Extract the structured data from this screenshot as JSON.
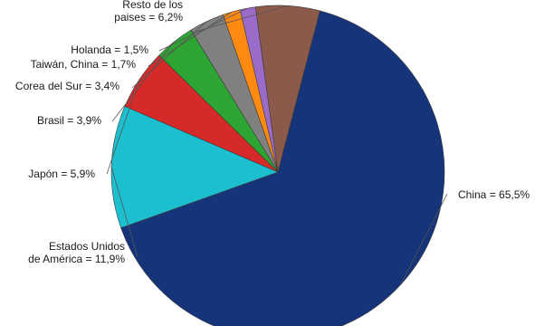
{
  "chart_data": {
    "type": "pie",
    "title": "",
    "slices": [
      {
        "name": "China",
        "value": 65.5,
        "label": [
          "China = 65,5%"
        ],
        "color": "#15347a"
      },
      {
        "name": "Estados Unidos de América",
        "value": 11.9,
        "label": [
          "Estados Unidos",
          "de América = 11,9%"
        ],
        "color": "#1bbfd0"
      },
      {
        "name": "Japón",
        "value": 5.9,
        "label": [
          "Japón = 5,9%"
        ],
        "color": "#d62a2a"
      },
      {
        "name": "Brasil",
        "value": 3.9,
        "label": [
          "Brasil = 3,9%"
        ],
        "color": "#2ea532"
      },
      {
        "name": "Corea del Sur",
        "value": 3.4,
        "label": [
          "Corea del Sur = 3,4%"
        ],
        "color": "#808080"
      },
      {
        "name": "Taiwán, China",
        "value": 1.7,
        "label": [
          "Taiwán, China = 1,7%"
        ],
        "color": "#ff8a12"
      },
      {
        "name": "Holanda",
        "value": 1.5,
        "label": [
          "Holanda = 1,5%"
        ],
        "color": "#9b6bc9"
      },
      {
        "name": "Resto de los paises",
        "value": 6.2,
        "label": [
          "Resto de los",
          "paises = 6,2%"
        ],
        "color": "#8b5a4a"
      }
    ]
  }
}
